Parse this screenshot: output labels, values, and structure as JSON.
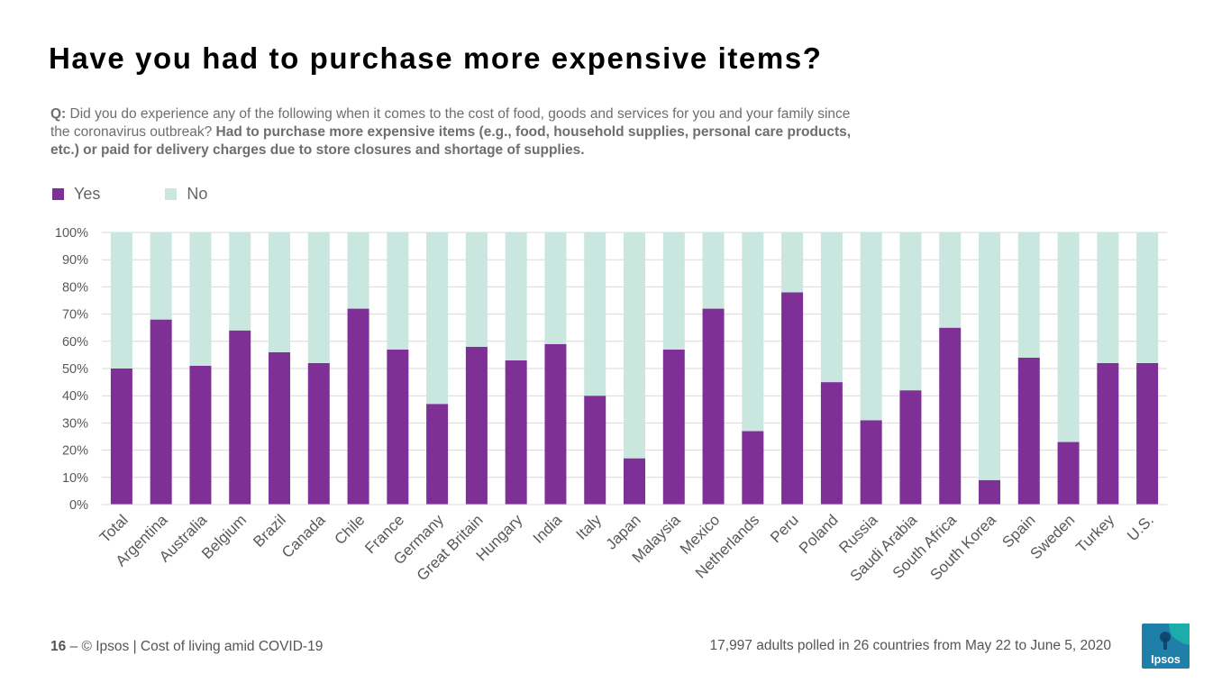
{
  "slide": {
    "title": "Have you had to purchase more expensive items?",
    "question": {
      "prefix": "Q:",
      "text": " Did you do experience any of the following when it comes to the cost of food, goods and services for you and your family since the coronavirus outbreak? ",
      "bold": "Had to purchase more expensive items (e.g., food, household supplies, personal care products, etc.) or paid for delivery charges due to store closures and shortage of supplies."
    },
    "footer": {
      "page_number": "16",
      "dash": " – ",
      "source": "© Ipsos | Cost of living amid COVID-19",
      "note": "17,997 adults polled in 26 countries from May 22 to June 5, 2020"
    },
    "logo_text": "Ipsos"
  },
  "colors": {
    "yes": "#7e3097",
    "no": "#c9e6df",
    "grid": "#d9d9d9",
    "axis_text": "#595959",
    "logo_bg": "#1f7fa8",
    "logo_accent": "#1ab3a8"
  },
  "chart_data": {
    "type": "bar",
    "stacked": true,
    "categories": [
      "Total",
      "Argentina",
      "Australia",
      "Belgium",
      "Brazil",
      "Canada",
      "Chile",
      "France",
      "Germany",
      "Great Britain",
      "Hungary",
      "India",
      "Italy",
      "Japan",
      "Malaysia",
      "Mexico",
      "Netherlands",
      "Peru",
      "Poland",
      "Russia",
      "Saudi Arabia",
      "South Africa",
      "South Korea",
      "Spain",
      "Sweden",
      "Turkey",
      "U.S."
    ],
    "series": [
      {
        "name": "Yes",
        "values": [
          50,
          68,
          51,
          64,
          56,
          52,
          72,
          57,
          37,
          58,
          53,
          59,
          40,
          17,
          57,
          72,
          27,
          78,
          45,
          31,
          42,
          65,
          9,
          54,
          23,
          52,
          52
        ]
      },
      {
        "name": "No",
        "values": [
          50,
          32,
          49,
          36,
          44,
          48,
          28,
          43,
          63,
          42,
          47,
          41,
          60,
          83,
          43,
          28,
          73,
          22,
          55,
          69,
          58,
          35,
          91,
          46,
          77,
          48,
          48
        ]
      }
    ],
    "y_ticks": [
      "0%",
      "10%",
      "20%",
      "30%",
      "40%",
      "50%",
      "60%",
      "70%",
      "80%",
      "90%",
      "100%"
    ],
    "ylim": [
      0,
      100
    ],
    "title": "",
    "xlabel": "",
    "ylabel": "",
    "legend_position": "top-left",
    "grid": true
  }
}
